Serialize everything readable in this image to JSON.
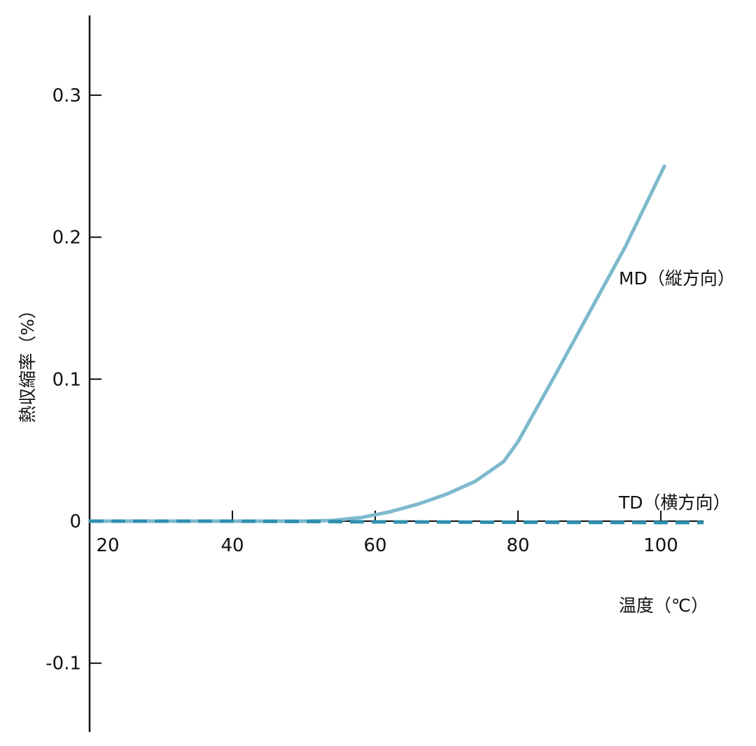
{
  "chart_data": {
    "type": "line",
    "title": "",
    "xlabel": "温度（℃）",
    "ylabel": "熱収縮率（%）",
    "xlim": [
      20,
      106
    ],
    "ylim": [
      -0.15,
      0.355
    ],
    "x_ticks": [
      {
        "value": 20,
        "label": "20"
      },
      {
        "value": 40,
        "label": "40"
      },
      {
        "value": 60,
        "label": "60"
      },
      {
        "value": 80,
        "label": "80"
      },
      {
        "value": 100,
        "label": "100"
      }
    ],
    "y_ticks": [
      {
        "value": 0.3,
        "label": "0.3"
      },
      {
        "value": 0.2,
        "label": "0.2"
      },
      {
        "value": 0.1,
        "label": "0.1"
      },
      {
        "value": 0,
        "label": "0"
      },
      {
        "value": -0.1,
        "label": "-0.1"
      }
    ],
    "grid": false,
    "legend": "inline labels at right",
    "series": [
      {
        "name": "MD（縦方向）",
        "style": "solid",
        "color": "#7db9cd",
        "x": [
          20,
          30,
          40,
          50,
          54,
          58,
          62,
          66,
          70,
          74,
          78,
          80,
          85,
          90,
          95,
          100.5
        ],
        "y": [
          0,
          0,
          0,
          0,
          0.0005,
          0.0025,
          0.0065,
          0.012,
          0.019,
          0.028,
          0.042,
          0.056,
          0.101,
          0.147,
          0.193,
          0.25
        ]
      },
      {
        "name": "TD（横方向）",
        "style": "dashed",
        "color": "#2f8fb0",
        "x": [
          20,
          40,
          60,
          80,
          100,
          106
        ],
        "y": [
          0,
          0,
          -0.0005,
          -0.0008,
          -0.001,
          -0.001
        ]
      }
    ]
  }
}
